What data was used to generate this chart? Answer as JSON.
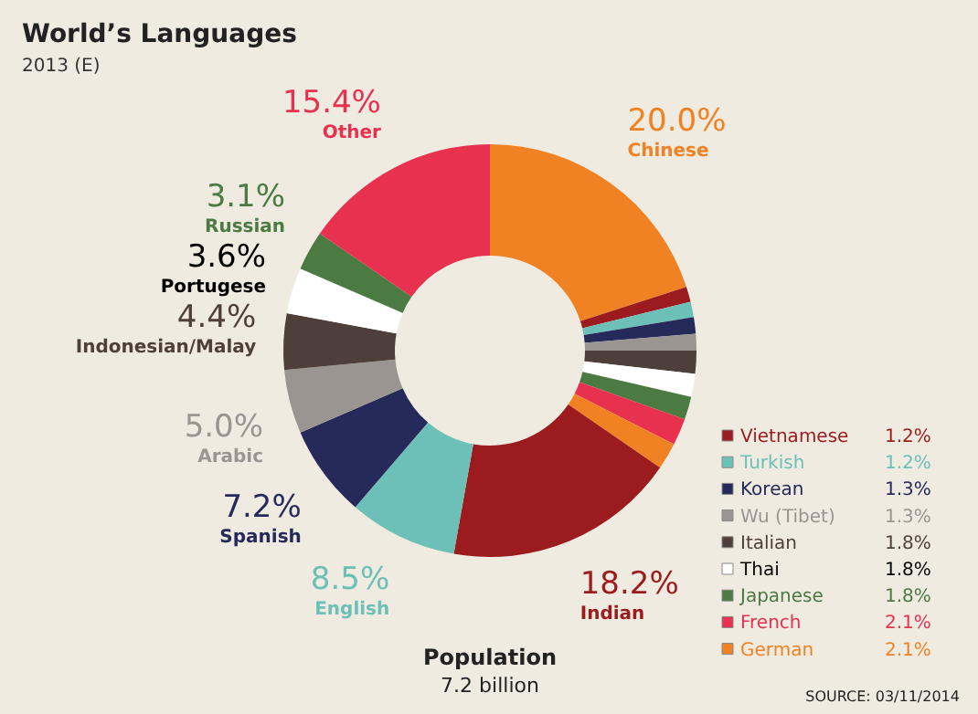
{
  "chart_data": {
    "type": "donut",
    "title": "World’s Languages",
    "subtitle": "2013 (E)",
    "categories": [
      "Chinese",
      "Vietnamese",
      "Turkish",
      "Korean",
      "Wu (Tibet)",
      "Italian",
      "Thai",
      "Japanese",
      "French",
      "German",
      "Indian",
      "English",
      "Spanish",
      "Arabic",
      "Indonesian/Malay",
      "Portugese",
      "Russian",
      "Other"
    ],
    "values": [
      20.0,
      1.2,
      1.2,
      1.3,
      1.3,
      1.8,
      1.8,
      1.8,
      2.1,
      2.1,
      18.2,
      8.5,
      7.2,
      5.0,
      4.4,
      3.6,
      3.1,
      15.4
    ],
    "value_labels": [
      "20.0%",
      "1.2%",
      "1.2%",
      "1.3%",
      "1.3%",
      "1.8%",
      "1.8%",
      "1.8%",
      "2.1%",
      "2.1%",
      "18.2%",
      "8.5%",
      "7.2%",
      "5.0%",
      "4.4%",
      "3.6%",
      "3.1%",
      "15.4%"
    ],
    "colors": [
      "#f08224",
      "#9b1b1e",
      "#6cc0b8",
      "#262a5a",
      "#9a9591",
      "#4e3f3a",
      "#ffffff",
      "#4b7a43",
      "#e8314f",
      "#f08224",
      "#9b1b1e",
      "#6cc0b8",
      "#262a5a",
      "#9a9591",
      "#4e3f3a",
      "#ffffff",
      "#4b7a43",
      "#e8314f"
    ],
    "legend": "bottom right",
    "annotations": [
      "Population",
      "7.2 billion",
      "SOURCE: 03/11/2014"
    ]
  }
}
